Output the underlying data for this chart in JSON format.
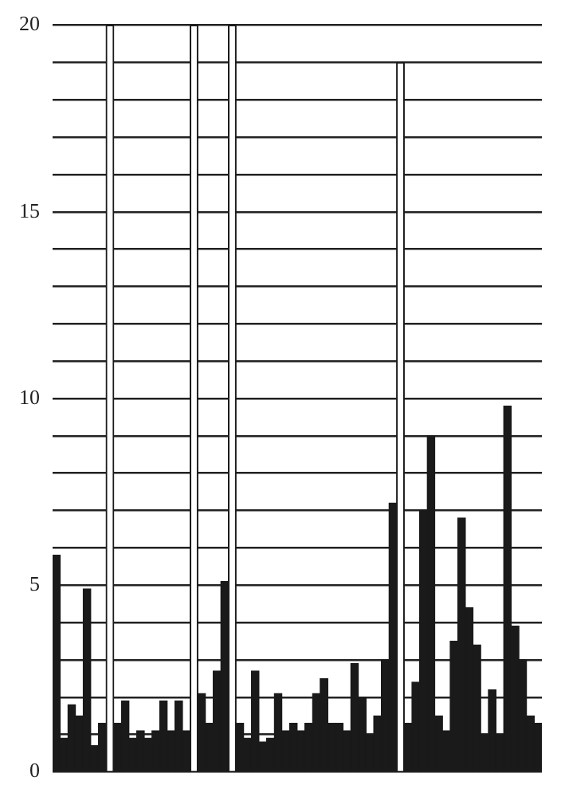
{
  "chart_data": {
    "type": "bar",
    "categories": [
      null,
      null,
      null,
      null,
      null,
      null,
      null,
      null,
      null,
      null,
      null,
      null,
      null,
      null,
      null,
      null,
      null,
      null,
      null,
      null,
      null,
      null,
      null,
      null,
      null,
      null,
      null,
      null,
      null,
      null,
      null,
      null,
      null,
      null,
      null,
      null,
      null,
      null,
      null,
      null,
      null,
      null,
      null,
      null,
      null,
      null,
      null,
      null,
      null,
      null,
      null,
      null,
      null,
      null,
      null,
      null,
      null,
      null,
      null,
      null,
      null,
      null,
      null,
      null
    ],
    "series": [
      {
        "color": "#1a1a1a",
        "values": [
          5.8,
          0.9,
          1.8,
          1.5,
          4.9,
          0.7,
          1.3,
          null,
          1.3,
          1.9,
          0.9,
          1.1,
          0.9,
          1.1,
          1.9,
          1.1,
          1.9,
          1.1,
          null,
          2.1,
          1.3,
          2.7,
          5.1,
          null,
          1.3,
          0.9,
          2.7,
          0.8,
          0.9,
          2.1,
          1.1,
          1.3,
          1.1,
          1.3,
          2.1,
          2.5,
          1.3,
          1.3,
          1.1,
          2.9,
          2.0,
          1.0,
          1.5,
          3.0,
          7.2,
          null,
          1.3,
          2.4,
          7.0,
          9.0,
          1.5,
          1.1,
          3.5,
          6.8,
          4.4,
          3.4,
          1.0,
          2.2,
          1.0,
          9.8,
          3.9,
          3.0,
          1.5,
          1.3
        ]
      },
      {
        "color": "#ffffff",
        "values": [
          null,
          null,
          null,
          null,
          null,
          null,
          null,
          20,
          null,
          null,
          null,
          null,
          null,
          null,
          null,
          null,
          null,
          null,
          20,
          null,
          null,
          null,
          null,
          20,
          null,
          null,
          null,
          null,
          null,
          null,
          null,
          null,
          null,
          null,
          null,
          null,
          null,
          null,
          null,
          null,
          null,
          null,
          null,
          null,
          null,
          19,
          null,
          null,
          null,
          null,
          null,
          null,
          null,
          null,
          null,
          null,
          null,
          null,
          null,
          null,
          null,
          null,
          null,
          null
        ]
      }
    ],
    "ylim": [
      0,
      20
    ],
    "yticks": [
      0,
      {
        "value": 1,
        "label": null
      },
      {
        "value": 2,
        "label": null
      },
      {
        "value": 3,
        "label": null
      },
      {
        "value": 4,
        "label": null
      },
      5,
      {
        "value": 6,
        "label": null
      },
      {
        "value": 7,
        "label": null
      },
      {
        "value": 8,
        "label": null
      },
      {
        "value": 9,
        "label": null
      },
      10,
      {
        "value": 11,
        "label": null
      },
      {
        "value": 12,
        "label": null
      },
      {
        "value": 13,
        "label": null
      },
      {
        "value": 14,
        "label": null
      },
      15,
      {
        "value": 16,
        "label": null
      },
      {
        "value": 17,
        "label": null
      },
      {
        "value": 18,
        "label": null
      },
      {
        "value": 19,
        "label": null
      },
      20
    ],
    "grid": "y"
  }
}
